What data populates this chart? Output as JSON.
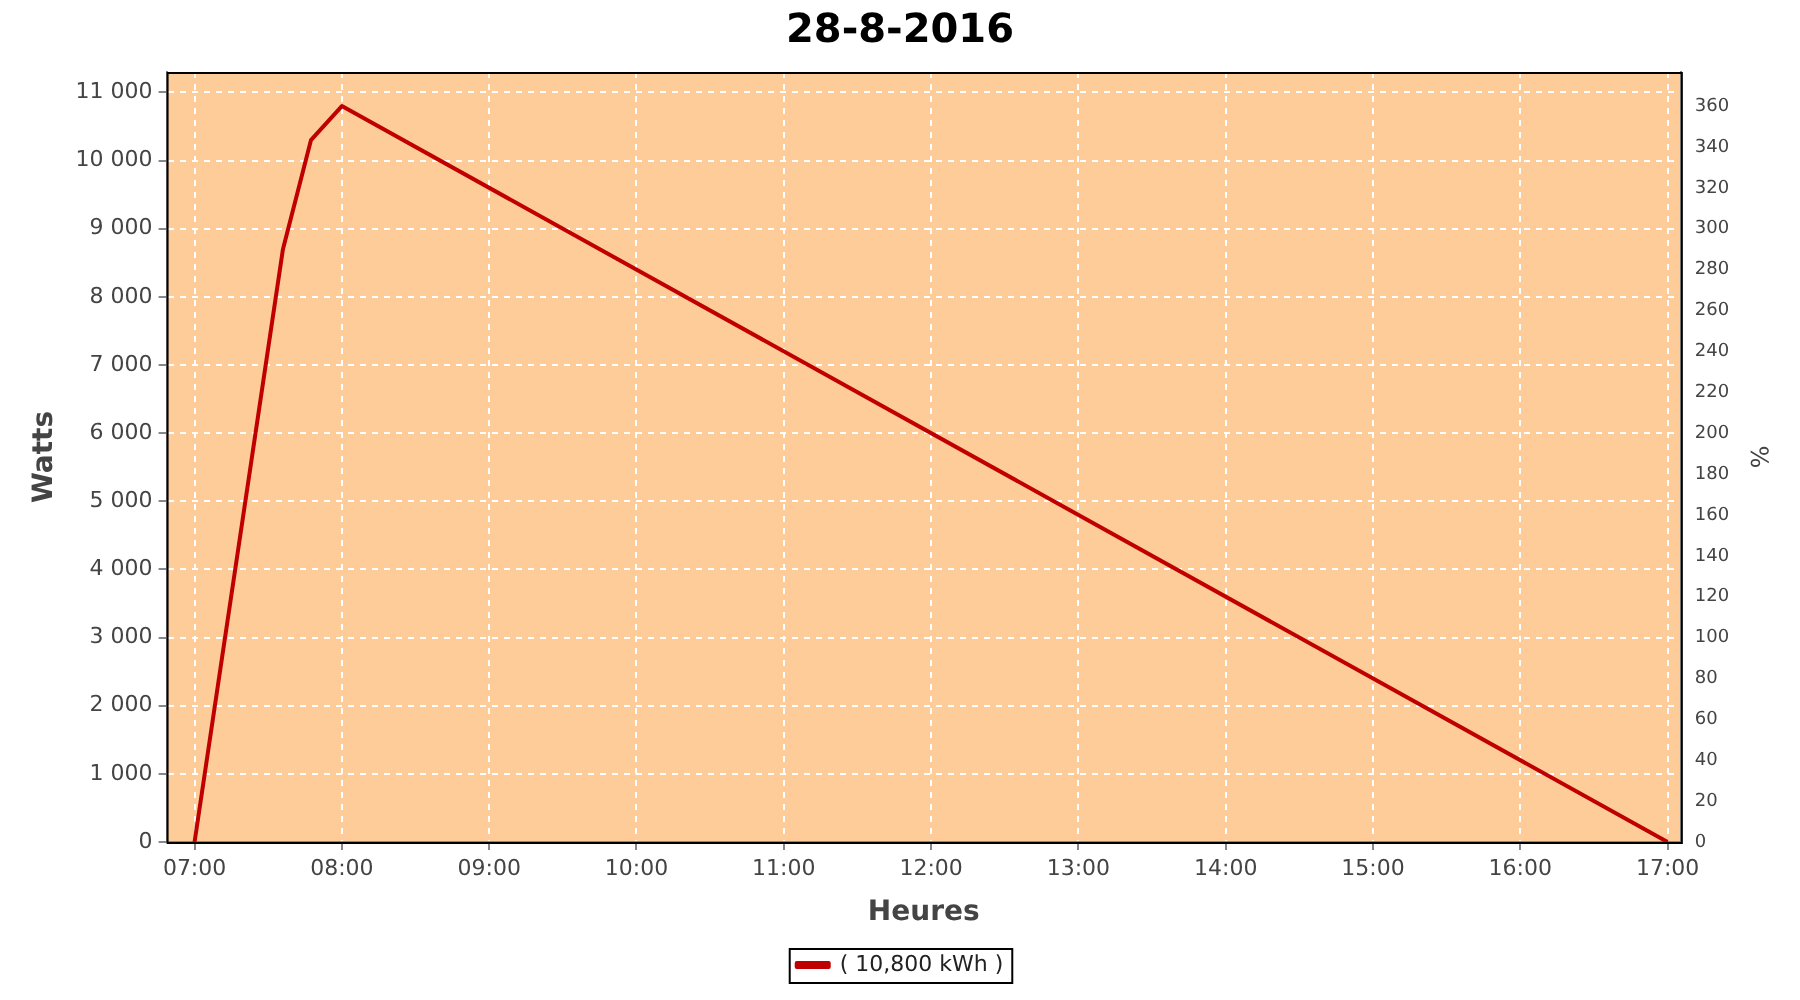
{
  "chart_data": {
    "type": "line",
    "title": "28-8-2016",
    "xlabel": "Heures",
    "ylabel": "Watts",
    "y2label": "%",
    "series": [
      {
        "name": "( 10,800 kWh )",
        "color": "#c00000",
        "x": [
          7.0,
          7.6,
          7.79,
          8.0,
          17.0
        ],
        "values": [
          0,
          8700,
          10300,
          10800,
          0
        ]
      }
    ],
    "xlim": [
      6.81,
      17.09
    ],
    "xticks": [
      {
        "value": 7,
        "label": "07:00"
      },
      {
        "value": 8,
        "label": "08:00"
      },
      {
        "value": 9,
        "label": "09:00"
      },
      {
        "value": 10,
        "label": "10:00"
      },
      {
        "value": 11,
        "label": "11:00"
      },
      {
        "value": 12,
        "label": "12:00"
      },
      {
        "value": 13,
        "label": "13:00"
      },
      {
        "value": 14,
        "label": "14:00"
      },
      {
        "value": 15,
        "label": "15:00"
      },
      {
        "value": 16,
        "label": "16:00"
      },
      {
        "value": 17,
        "label": "17:00"
      }
    ],
    "ylim": [
      0,
      11300
    ],
    "yticks": [
      0,
      {
        "value": 1000,
        "label": "1 000"
      },
      {
        "value": 2000,
        "label": "2 000"
      },
      {
        "value": 3000,
        "label": "3 000"
      },
      {
        "value": 4000,
        "label": "4 000"
      },
      {
        "value": 5000,
        "label": "5 000"
      },
      {
        "value": 6000,
        "label": "6 000"
      },
      {
        "value": 7000,
        "label": "7 000"
      },
      {
        "value": 8000,
        "label": "8 000"
      },
      {
        "value": 9000,
        "label": "9 000"
      },
      {
        "value": 10000,
        "label": "10 000"
      },
      {
        "value": 11000,
        "label": "11 000"
      }
    ],
    "y2lim": [
      0,
      376.7
    ],
    "y2ticks": [
      0,
      20,
      40,
      60,
      80,
      100,
      120,
      140,
      160,
      180,
      200,
      220,
      240,
      260,
      280,
      300,
      320,
      340,
      360
    ],
    "grid": true,
    "legend": "bottom",
    "marker": "none",
    "line_style": "solid"
  }
}
